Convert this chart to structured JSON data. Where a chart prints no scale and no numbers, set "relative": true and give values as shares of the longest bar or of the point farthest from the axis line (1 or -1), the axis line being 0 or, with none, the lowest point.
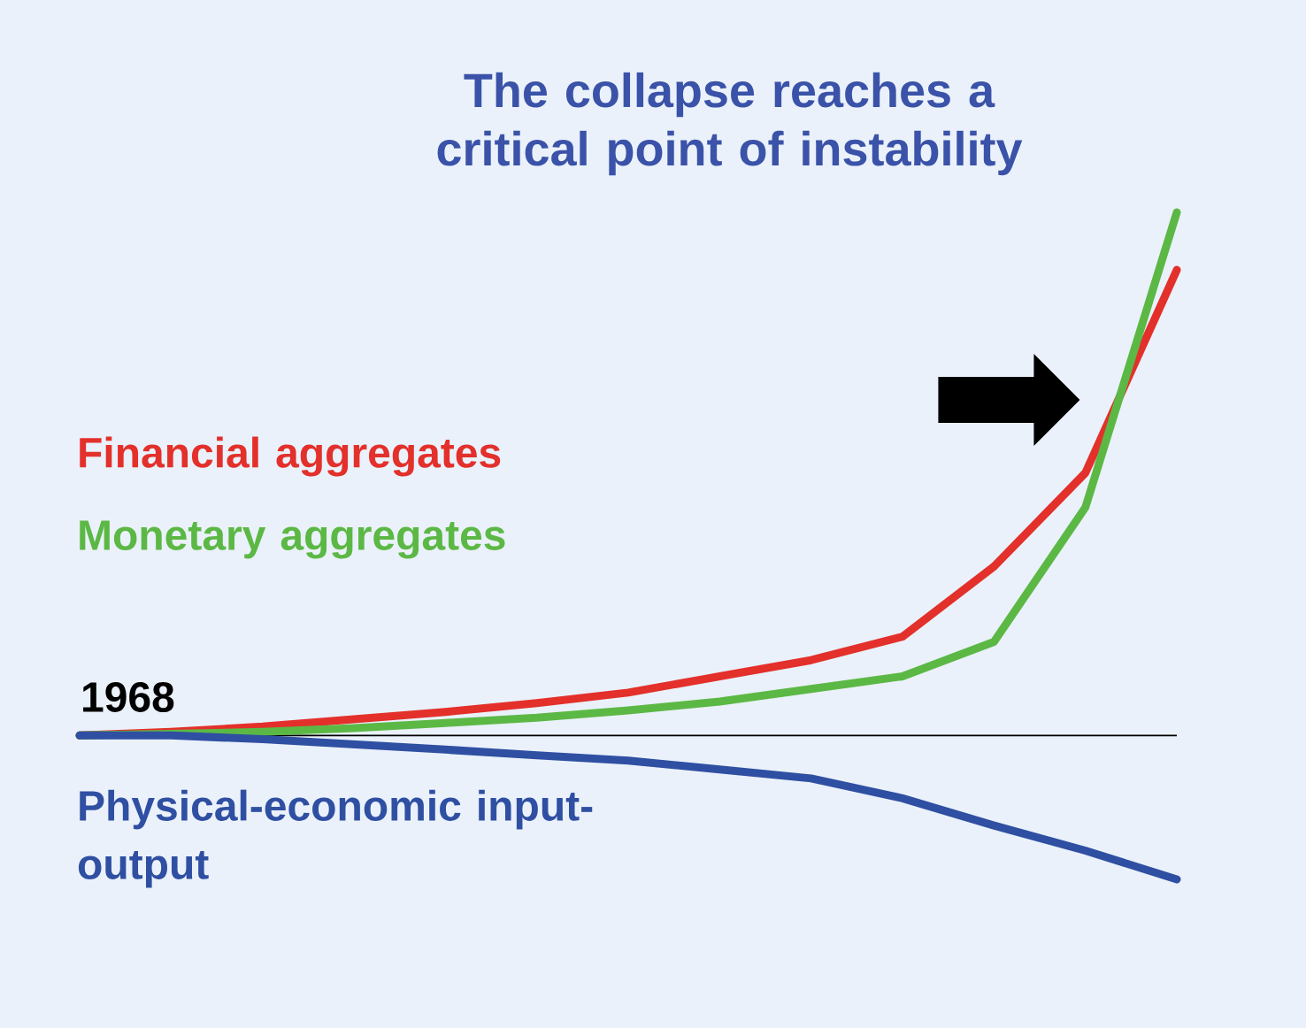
{
  "chart_data": {
    "type": "line",
    "title": "The collapse reaches a critical point of instability",
    "relative": true,
    "categories": [
      null,
      null,
      null,
      null,
      null,
      null,
      null,
      null,
      null,
      null,
      null,
      null,
      null
    ],
    "annotations": [
      "1968"
    ],
    "series": [
      {
        "name": "Financial aggregates",
        "color": "#e3302b",
        "values": [
          0,
          0.007,
          0.017,
          0.031,
          0.045,
          0.062,
          0.082,
          0.113,
          0.144,
          0.189,
          0.323,
          0.502,
          0.89
        ]
      },
      {
        "name": "Monetary aggregates",
        "color": "#5cb845",
        "values": [
          0,
          0.003,
          0.007,
          0.014,
          0.024,
          0.034,
          0.048,
          0.065,
          0.089,
          0.113,
          0.179,
          0.436,
          1
        ]
      },
      {
        "name": "Physical-economic input-output",
        "color": "#2f4fa2",
        "values": [
          0,
          0,
          -0.007,
          -0.017,
          -0.027,
          -0.038,
          -0.048,
          -0.065,
          -0.082,
          -0.12,
          -0.172,
          -0.22,
          -0.275
        ]
      }
    ]
  }
}
